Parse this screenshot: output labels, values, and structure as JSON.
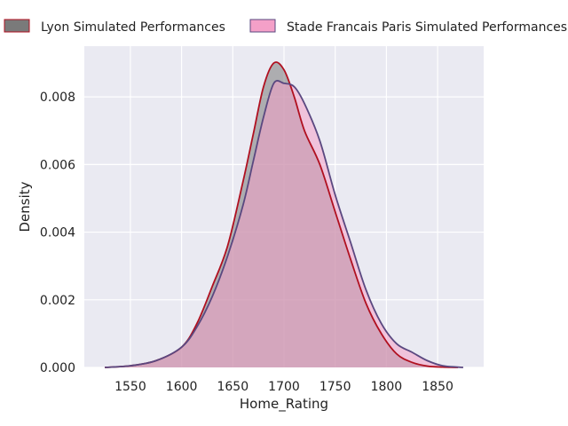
{
  "chart_data": {
    "type": "area",
    "title": "",
    "xlabel": "Home_Rating",
    "ylabel": "Density",
    "xlim": [
      1505,
      1895
    ],
    "ylim": [
      0,
      0.0095
    ],
    "xticks": [
      1550,
      1600,
      1650,
      1700,
      1750,
      1800,
      1850
    ],
    "yticks": [
      0.0,
      0.002,
      0.004,
      0.006,
      0.008
    ],
    "ytick_labels": [
      "0.000",
      "0.002",
      "0.004",
      "0.006",
      "0.008"
    ],
    "grid": true,
    "legend_position": "top",
    "series": [
      {
        "name": "Lyon Simulated Performances",
        "fill_color": "#7a7a7a",
        "line_color": "#b01020",
        "x": [
          1525,
          1550,
          1575,
          1600,
          1615,
          1630,
          1645,
          1660,
          1670,
          1680,
          1690,
          1700,
          1710,
          1720,
          1735,
          1750,
          1765,
          1780,
          1795,
          1810,
          1825,
          1840,
          1855,
          1870
        ],
        "y": [
          0.0,
          5e-05,
          0.0002,
          0.0006,
          0.0013,
          0.0024,
          0.0036,
          0.0055,
          0.0069,
          0.0083,
          0.009,
          0.0088,
          0.008,
          0.007,
          0.006,
          0.0046,
          0.0032,
          0.0019,
          0.001,
          0.0004,
          0.00015,
          4e-05,
          1e-05,
          0.0
        ]
      },
      {
        "name": "Stade Francais Paris Simulated Performances",
        "fill_color": "#f4a0c8",
        "line_color": "#5a4880",
        "x": [
          1525,
          1550,
          1575,
          1600,
          1615,
          1630,
          1645,
          1660,
          1670,
          1680,
          1690,
          1700,
          1710,
          1720,
          1735,
          1750,
          1765,
          1780,
          1795,
          1810,
          1825,
          1840,
          1855,
          1875
        ],
        "y": [
          0.0,
          5e-05,
          0.0002,
          0.0006,
          0.0012,
          0.0021,
          0.0033,
          0.0048,
          0.0061,
          0.0074,
          0.0084,
          0.0084,
          0.0083,
          0.0078,
          0.0067,
          0.0051,
          0.0037,
          0.0023,
          0.0013,
          0.0007,
          0.00045,
          0.0002,
          5e-05,
          0.0
        ]
      }
    ]
  }
}
